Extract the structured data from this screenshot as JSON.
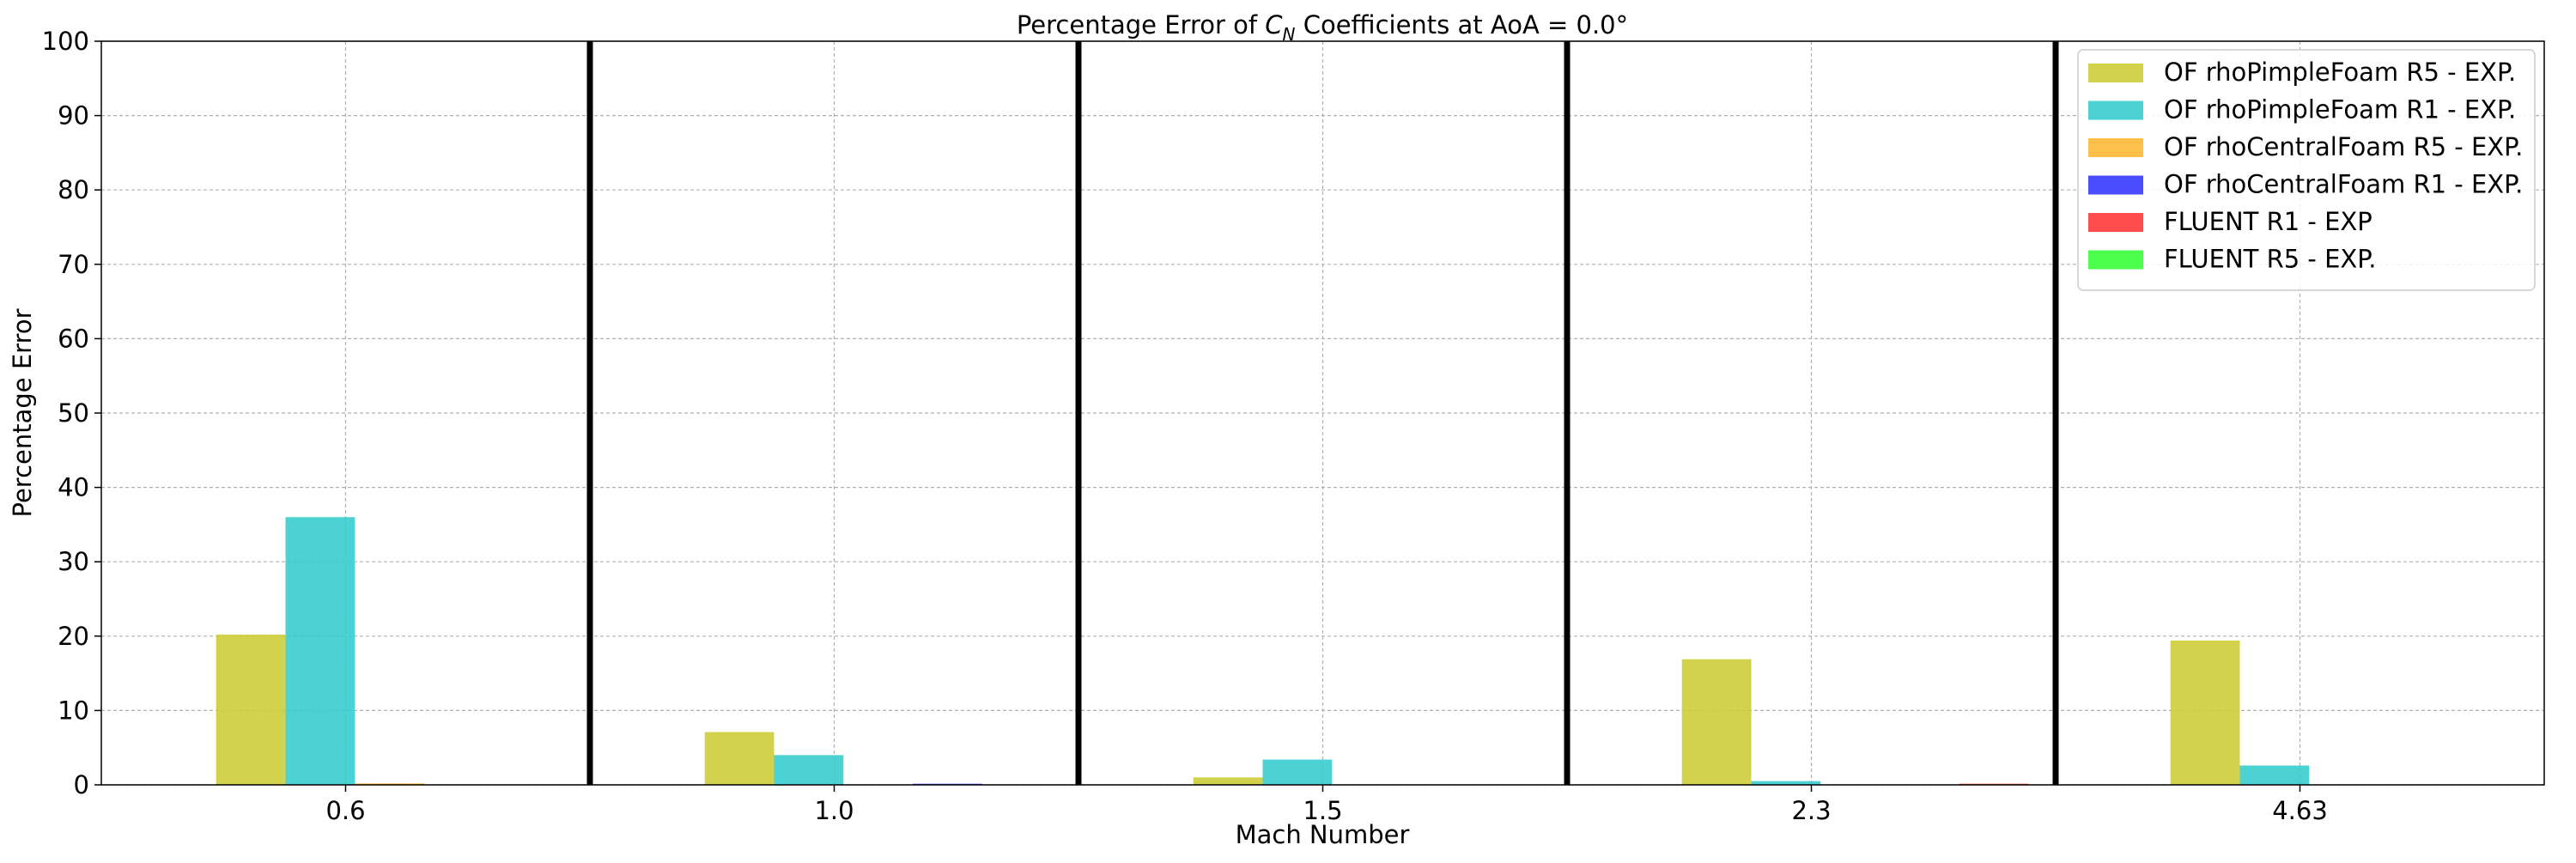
{
  "chart_data": {
    "type": "bar",
    "title_prefix": "Percentage Error of ",
    "title_symbol": "C",
    "title_subscript": "N",
    "title_suffix": " Coefficients at AoA = 0.0°",
    "xlabel": "Mach Number",
    "ylabel": "Percentage Error",
    "ylim": [
      0,
      100
    ],
    "yticks": [
      0,
      10,
      20,
      30,
      40,
      50,
      60,
      70,
      80,
      90,
      100
    ],
    "grid": true,
    "legend_position": "top-right",
    "categories": [
      "0.6",
      "1.0",
      "1.5",
      "2.3",
      "4.63"
    ],
    "series": [
      {
        "name": "OF rhoPimpleFoam R5 - EXP.",
        "color": "#cccc33",
        "values": [
          20.2,
          7.1,
          1.0,
          16.9,
          19.4
        ]
      },
      {
        "name": "OF rhoPimpleFoam R1 - EXP.",
        "color": "#33cccc",
        "values": [
          36.0,
          4.0,
          3.4,
          0.5,
          2.6
        ]
      },
      {
        "name": "OF rhoCentralFoam R5 - EXP.",
        "color": "#ffb733",
        "values": [
          0.2,
          0.0,
          0.0,
          0.0,
          0.0
        ]
      },
      {
        "name": "OF rhoCentralFoam R1 - EXP.",
        "color": "#3333ff",
        "values": [
          0.0,
          0.15,
          0.0,
          0.0,
          0.0
        ]
      },
      {
        "name": "FLUENT R1 - EXP",
        "color": "#ff3333",
        "values": [
          0.0,
          0.0,
          0.0,
          0.15,
          0.0
        ]
      },
      {
        "name": "FLUENT R5 - EXP.",
        "color": "#33ff33",
        "values": [
          0.0,
          0.0,
          0.0,
          0.0,
          0.0
        ]
      }
    ]
  }
}
